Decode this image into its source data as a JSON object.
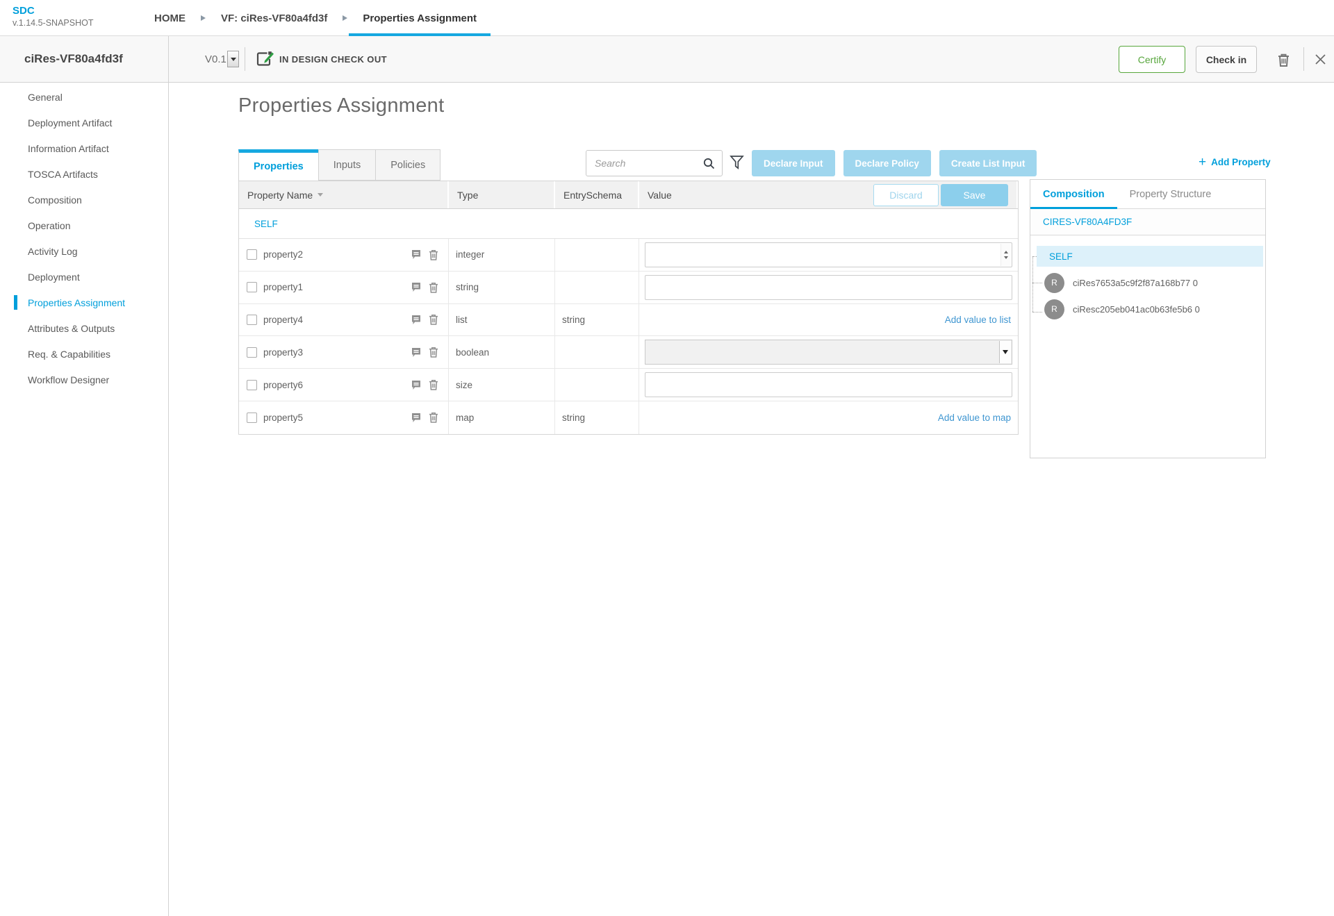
{
  "colors": {
    "accent": "#009fdb",
    "light_blue_button": "#9fd6ee",
    "save_button": "#8ccfec",
    "certify_green": "#57a63c",
    "link_blue": "#3f96d1",
    "self_highlight": "#ddf1fa"
  },
  "app": {
    "name": "SDC",
    "version": "v.1.14.5-SNAPSHOT"
  },
  "breadcrumbs": [
    {
      "label": "HOME",
      "active": false
    },
    {
      "label": "VF: ciRes-VF80a4fd3f",
      "active": false
    },
    {
      "label": "Properties Assignment",
      "active": true
    }
  ],
  "workspace_header": {
    "entity_name": "ciRes-VF80a4fd3f",
    "version": "V0.1",
    "lifecycle_status": "IN DESIGN CHECK OUT",
    "certify_label": "Certify",
    "check_in_label": "Check in"
  },
  "sidebar": {
    "items": [
      {
        "label": "General",
        "active": false
      },
      {
        "label": "Deployment Artifact",
        "active": false
      },
      {
        "label": "Information Artifact",
        "active": false
      },
      {
        "label": "TOSCA Artifacts",
        "active": false
      },
      {
        "label": "Composition",
        "active": false
      },
      {
        "label": "Operation",
        "active": false
      },
      {
        "label": "Activity Log",
        "active": false
      },
      {
        "label": "Deployment",
        "active": false
      },
      {
        "label": "Properties Assignment",
        "active": true
      },
      {
        "label": "Attributes & Outputs",
        "active": false
      },
      {
        "label": "Req. & Capabilities",
        "active": false
      },
      {
        "label": "Workflow Designer",
        "active": false
      }
    ]
  },
  "main": {
    "title": "Properties Assignment",
    "tabs": [
      {
        "label": "Properties",
        "active": true
      },
      {
        "label": "Inputs",
        "active": false
      },
      {
        "label": "Policies",
        "active": false
      }
    ],
    "search": {
      "placeholder": "Search",
      "value": ""
    },
    "actions": [
      "Declare Input",
      "Declare Policy",
      "Create List Input"
    ],
    "add_property_label": "Add Property",
    "add_property_plus": "+",
    "table": {
      "columns": [
        "Property Name",
        "Type",
        "EntrySchema",
        "Value"
      ],
      "discard_label": "Discard",
      "save_label": "Save",
      "group_label": "SELF",
      "rows": [
        {
          "name": "property2",
          "type": "integer",
          "entry_schema": "",
          "widget": "number",
          "value": ""
        },
        {
          "name": "property1",
          "type": "string",
          "entry_schema": "",
          "widget": "text",
          "value": ""
        },
        {
          "name": "property4",
          "type": "list",
          "entry_schema": "string",
          "widget": "link",
          "link_label": "Add value to list"
        },
        {
          "name": "property3",
          "type": "boolean",
          "entry_schema": "",
          "widget": "select",
          "value": ""
        },
        {
          "name": "property6",
          "type": "size",
          "entry_schema": "",
          "widget": "text",
          "value": ""
        },
        {
          "name": "property5",
          "type": "map",
          "entry_schema": "string",
          "widget": "link",
          "link_label": "Add value to map"
        }
      ]
    }
  },
  "composition_panel": {
    "tabs": [
      {
        "label": "Composition",
        "active": true
      },
      {
        "label": "Property Structure",
        "active": false
      }
    ],
    "component_title": "CIRES-VF80A4FD3F",
    "tree": {
      "self_label": "SELF",
      "instances": [
        {
          "initial": "R",
          "label": "ciRes7653a5c9f2f87a168b77 0"
        },
        {
          "initial": "R",
          "label": "ciResc205eb041ac0b63fe5b6 0"
        }
      ]
    }
  }
}
